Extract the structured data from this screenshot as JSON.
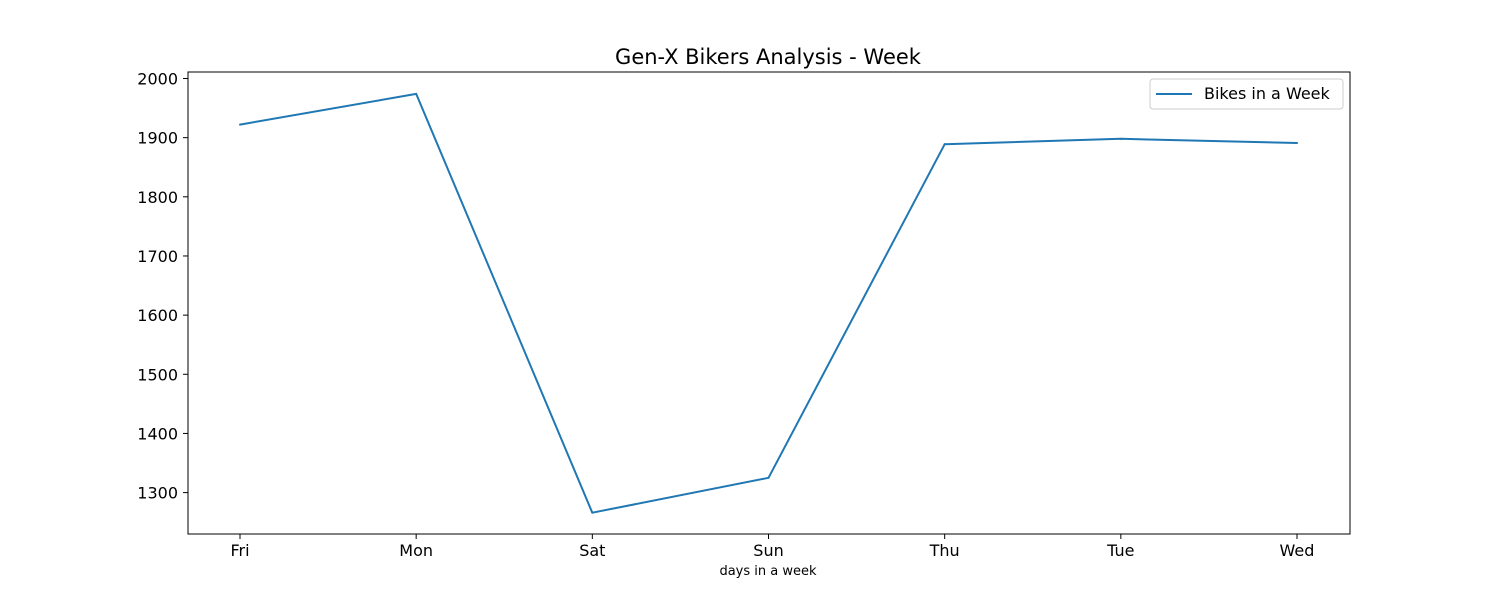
{
  "chart_data": {
    "type": "line",
    "title": "Gen-X Bikers Analysis - Week",
    "xlabel": "days in a week",
    "ylabel": "",
    "categories": [
      "Fri",
      "Mon",
      "Sat",
      "Sun",
      "Thu",
      "Tue",
      "Wed"
    ],
    "series": [
      {
        "name": "Bikes in a Week",
        "values": [
          1922,
          1974,
          1266,
          1325,
          1889,
          1898,
          1891
        ],
        "color": "#1f77b4"
      }
    ],
    "ylim": [
      1230,
      2011
    ],
    "yticks": [
      1300,
      1400,
      1500,
      1600,
      1700,
      1800,
      1900,
      2000
    ],
    "grid": false,
    "legend_position": "top-right"
  }
}
